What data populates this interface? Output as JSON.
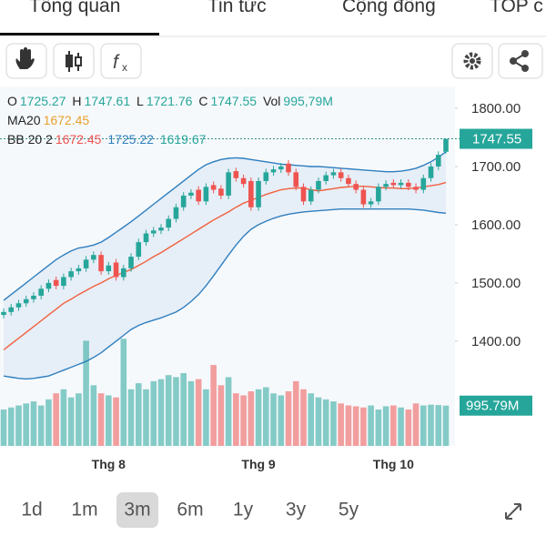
{
  "tabs": [
    "Tổng quan",
    "Tin tức",
    "Cộng đồng",
    "TOP c"
  ],
  "ranges": [
    "1d",
    "1m",
    "3m",
    "6m",
    "1y",
    "3y",
    "5y"
  ],
  "selected_range": 2,
  "legend": {
    "open": "O",
    "high": "H",
    "low": "L",
    "close": "C",
    "volume": "Vol",
    "volume_label": "995,79M",
    "ma": "MA20",
    "bb": "BB 20 2"
  },
  "chart_data": {
    "type": "candlestick",
    "categories": [
      null,
      null,
      null,
      null,
      null,
      null,
      null,
      null,
      null,
      null,
      null,
      null,
      null,
      null,
      "Thg 8",
      null,
      null,
      null,
      null,
      null,
      null,
      null,
      null,
      null,
      null,
      null,
      null,
      null,
      null,
      null,
      null,
      null,
      null,
      null,
      "Thg 9",
      null,
      null,
      null,
      null,
      null,
      null,
      null,
      null,
      null,
      null,
      null,
      null,
      null,
      null,
      null,
      null,
      null,
      "Thg 10",
      null,
      null,
      null,
      null,
      null,
      null,
      null
    ],
    "open": [
      1445,
      1450,
      1458,
      1465,
      1472,
      1478,
      1490,
      1505,
      1495,
      1510,
      1520,
      1525,
      1540,
      1548,
      1520,
      1535,
      1510,
      1525,
      1545,
      1570,
      1585,
      1590,
      1595,
      1610,
      1630,
      1650,
      1660,
      1640,
      1668,
      1662,
      1650,
      1692,
      1680,
      1675,
      1630,
      1675,
      1690,
      1695,
      1705,
      1690,
      1665,
      1640,
      1660,
      1675,
      1685,
      1690,
      1680,
      1670,
      1660,
      1635,
      1640,
      1665,
      1672,
      1668,
      1672,
      1665,
      1660,
      1680,
      1700,
      1725.27
    ],
    "high": [
      1456,
      1464,
      1471,
      1478,
      1484,
      1496,
      1506,
      1511,
      1516,
      1526,
      1531,
      1546,
      1554,
      1554,
      1536,
      1541,
      1531,
      1551,
      1576,
      1591,
      1596,
      1601,
      1616,
      1636,
      1656,
      1661,
      1666,
      1671,
      1674,
      1668,
      1696,
      1698,
      1686,
      1681,
      1681,
      1696,
      1701,
      1706,
      1711,
      1696,
      1671,
      1666,
      1681,
      1691,
      1696,
      1696,
      1686,
      1676,
      1666,
      1646,
      1671,
      1676,
      1678,
      1678,
      1678,
      1671,
      1686,
      1706,
      1726,
      1747.61
    ],
    "low": [
      1439,
      1444,
      1452,
      1459,
      1466,
      1472,
      1484,
      1489,
      1489,
      1504,
      1514,
      1519,
      1534,
      1514,
      1514,
      1504,
      1504,
      1519,
      1539,
      1564,
      1579,
      1584,
      1589,
      1604,
      1624,
      1644,
      1634,
      1634,
      1654,
      1644,
      1644,
      1674,
      1664,
      1624,
      1624,
      1669,
      1684,
      1689,
      1684,
      1659,
      1634,
      1634,
      1654,
      1669,
      1679,
      1674,
      1664,
      1654,
      1629,
      1629,
      1634,
      1659,
      1662,
      1662,
      1659,
      1654,
      1654,
      1674,
      1694,
      1721.76
    ],
    "close": [
      1450,
      1458,
      1465,
      1472,
      1478,
      1490,
      1500,
      1495,
      1510,
      1520,
      1525,
      1540,
      1548,
      1520,
      1530,
      1510,
      1525,
      1545,
      1570,
      1585,
      1590,
      1595,
      1610,
      1630,
      1650,
      1655,
      1640,
      1665,
      1660,
      1650,
      1690,
      1680,
      1670,
      1630,
      1675,
      1690,
      1695,
      1700,
      1690,
      1665,
      1640,
      1660,
      1675,
      1685,
      1690,
      1680,
      1670,
      1660,
      1635,
      1640,
      1665,
      1670,
      1668,
      1672,
      1665,
      1660,
      1680,
      1700,
      1720,
      1747.55
    ],
    "volume": [
      900,
      950,
      1000,
      1050,
      1100,
      1000,
      1150,
      1300,
      1400,
      1200,
      1300,
      2600,
      1500,
      1300,
      1250,
      1200,
      2650,
      1400,
      1550,
      1400,
      1600,
      1650,
      1750,
      1700,
      1800,
      1600,
      1650,
      1400,
      2000,
      1500,
      1700,
      1300,
      1250,
      1350,
      1400,
      1450,
      1300,
      1250,
      1350,
      1600,
      1400,
      1300,
      1200,
      1150,
      1100,
      1050,
      1000,
      980,
      950,
      1000,
      900,
      980,
      1000,
      950,
      900,
      1050,
      1000,
      1020,
      1010,
      995.79
    ],
    "volume_tag": "995.79M",
    "ma20": [
      1385,
      1395,
      1405,
      1415,
      1425,
      1435,
      1445,
      1455,
      1465,
      1472,
      1480,
      1487,
      1494,
      1500,
      1507,
      1513,
      1518,
      1523,
      1530,
      1537,
      1545,
      1552,
      1560,
      1568,
      1576,
      1584,
      1592,
      1600,
      1608,
      1615,
      1622,
      1630,
      1637,
      1642,
      1647,
      1652,
      1656,
      1660,
      1662,
      1663,
      1663,
      1660,
      1658,
      1660,
      1662,
      1664,
      1665,
      1666,
      1666,
      1665,
      1664,
      1663,
      1663,
      1662,
      1662,
      1663,
      1665,
      1667,
      1669,
      1672.45
    ],
    "bb_upper": [
      1470,
      1480,
      1490,
      1500,
      1510,
      1520,
      1530,
      1540,
      1548,
      1555,
      1560,
      1562,
      1565,
      1570,
      1578,
      1587,
      1596,
      1605,
      1615,
      1625,
      1635,
      1645,
      1655,
      1665,
      1675,
      1685,
      1695,
      1703,
      1708,
      1712,
      1714,
      1715,
      1714,
      1712,
      1710,
      1708,
      1706,
      1704,
      1703,
      1702,
      1701,
      1700,
      1700,
      1699,
      1698,
      1697,
      1696,
      1695,
      1694,
      1693,
      1692,
      1691,
      1691,
      1692,
      1694,
      1697,
      1702,
      1708,
      1716,
      1725.22
    ],
    "bb_lower": [
      1340,
      1338,
      1336,
      1335,
      1336,
      1338,
      1340,
      1345,
      1350,
      1355,
      1360,
      1365,
      1372,
      1380,
      1390,
      1400,
      1410,
      1420,
      1427,
      1432,
      1436,
      1440,
      1445,
      1450,
      1458,
      1468,
      1480,
      1495,
      1512,
      1530,
      1548,
      1565,
      1580,
      1592,
      1600,
      1606,
      1611,
      1615,
      1618,
      1620,
      1622,
      1623,
      1624,
      1625,
      1626,
      1627,
      1627,
      1627,
      1627,
      1627,
      1627,
      1627,
      1627,
      1627,
      1627,
      1626,
      1625,
      1623,
      1621,
      1619.67
    ],
    "up_color": "#26a69a",
    "down_color": "#ef5350",
    "ma_color": "#f2603f",
    "bb_color": "#2f7fbf",
    "ylim": [
      1220,
      1837.5
    ],
    "yticks": [
      {
        "value": 1400,
        "label": "1400.00"
      },
      {
        "value": 1500,
        "label": "1500.00"
      },
      {
        "value": 1600,
        "label": "1600.00"
      },
      {
        "value": 1700,
        "label": "1700.00"
      },
      {
        "value": 1800,
        "label": "1800.00"
      }
    ],
    "vol_ylim": [
      0,
      2700
    ]
  }
}
